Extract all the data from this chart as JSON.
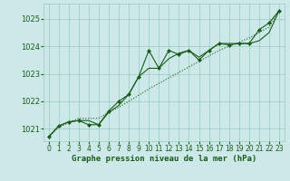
{
  "background_color": "#cce8e8",
  "grid_color": "#99ccbb",
  "line_color": "#1a5c1a",
  "xlabel": "Graphe pression niveau de la mer (hPa)",
  "xlim": [
    -0.5,
    23.5
  ],
  "ylim": [
    1020.55,
    1025.55
  ],
  "yticks": [
    1021,
    1022,
    1023,
    1024,
    1025
  ],
  "xticks": [
    0,
    1,
    2,
    3,
    4,
    5,
    6,
    7,
    8,
    9,
    10,
    11,
    12,
    13,
    14,
    15,
    16,
    17,
    18,
    19,
    20,
    21,
    22,
    23
  ],
  "series_smooth": [
    1020.7,
    1021.05,
    1021.22,
    1021.38,
    1021.38,
    1021.38,
    1021.6,
    1021.78,
    1022.0,
    1022.22,
    1022.45,
    1022.65,
    1022.85,
    1023.05,
    1023.25,
    1023.45,
    1023.65,
    1023.85,
    1024.0,
    1024.15,
    1024.3,
    1024.5,
    1024.7,
    1025.3
  ],
  "series_marked": [
    1020.7,
    1021.1,
    1021.25,
    1021.3,
    1021.15,
    1021.15,
    1021.65,
    1022.0,
    1022.25,
    1022.9,
    1023.85,
    1023.2,
    1023.85,
    1023.7,
    1023.85,
    1023.5,
    1023.85,
    1024.1,
    1024.05,
    1024.1,
    1024.1,
    1024.6,
    1024.85,
    1025.3
  ],
  "series_middle": [
    1020.7,
    1021.1,
    1021.25,
    1021.3,
    1021.3,
    1021.15,
    1021.6,
    1021.85,
    1022.25,
    1022.9,
    1023.2,
    1023.2,
    1023.55,
    1023.75,
    1023.85,
    1023.6,
    1023.85,
    1024.1,
    1024.1,
    1024.1,
    1024.1,
    1024.2,
    1024.5,
    1025.3
  ]
}
